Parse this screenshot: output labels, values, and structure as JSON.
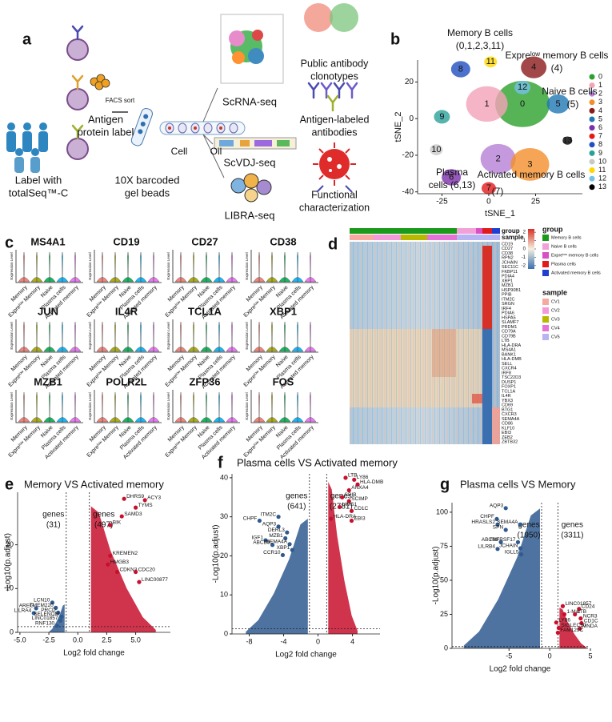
{
  "figure_a": {
    "panel": "a",
    "captions": [
      [
        "Label with",
        "totalSeq™-C"
      ],
      [
        "Antigen",
        "protein label"
      ],
      [
        "FACS sort"
      ],
      [
        "10X barcoded",
        "gel beads"
      ],
      [
        "Cell"
      ],
      [
        "Oil"
      ],
      [
        "ScRNA-seq"
      ],
      [
        "ScVDJ-seq"
      ],
      [
        "LIBRA-seq"
      ],
      [
        "Public antibody",
        "clonotypes"
      ],
      [
        "Antigen-labeled",
        "antibodies"
      ],
      [
        "Functional",
        "characterization"
      ]
    ]
  },
  "chart_data": [
    {
      "type": "scatter",
      "panel": "b",
      "xlabel": "tSNE_1",
      "ylabel": "tSNE_2",
      "xlim": [
        -38,
        50
      ],
      "ylim": [
        -41,
        32
      ],
      "xticks": [
        -25,
        0,
        25
      ],
      "yticks": [
        -40,
        -20,
        0,
        20
      ],
      "clusters": [
        {
          "label": "0",
          "color": "#2ca02c",
          "x": 18,
          "y": 8
        },
        {
          "label": "1",
          "color": "#f4a3b8",
          "x": -1,
          "y": 8
        },
        {
          "label": "2",
          "color": "#b57fd6",
          "x": 5,
          "y": -22
        },
        {
          "label": "3",
          "color": "#f28e2b",
          "x": 22,
          "y": -25
        },
        {
          "label": "4",
          "color": "#8b1a1a",
          "x": 24,
          "y": 28
        },
        {
          "label": "5",
          "color": "#1f77b4",
          "x": 37,
          "y": 8
        },
        {
          "label": "6",
          "color": "#7b2fa8",
          "x": -20,
          "y": -32
        },
        {
          "label": "7",
          "color": "#e31a1c",
          "x": 0,
          "y": -38
        },
        {
          "label": "8",
          "color": "#1f4fc0",
          "x": -15,
          "y": 27
        },
        {
          "label": "9",
          "color": "#2aa198",
          "x": -25,
          "y": 1
        },
        {
          "label": "10",
          "color": "#c8c8c8",
          "x": -28,
          "y": -17
        },
        {
          "label": "11",
          "color": "#ffd700",
          "x": 1,
          "y": 31
        },
        {
          "label": "12",
          "color": "#74c0e8",
          "x": 18,
          "y": 17
        },
        {
          "label": "13",
          "color": "#000000",
          "x": 42,
          "y": -12
        }
      ],
      "annotations": [
        [
          "Memory B cells",
          "(0,1,2,3,11)"
        ],
        [
          "Expreˡᵒʷ memory B cells",
          "(4)"
        ],
        [
          "Naive B cells",
          "(5)"
        ],
        [
          "Plasma",
          "cells (6,13)"
        ],
        [
          "Activated memory B cells",
          "(7)"
        ]
      ]
    },
    {
      "type": "violin",
      "panel": "c",
      "ylabel": "Expression Level",
      "categories": [
        "Memory",
        "Expreˡᵒʷ Memory",
        "Naive",
        "Plasma cells",
        "Activated memory"
      ],
      "colors": [
        "#f0776d",
        "#a3a500",
        "#00b050",
        "#00b0f6",
        "#e76bf3"
      ],
      "genes": [
        "MS4A1",
        "CD19",
        "CD27",
        "CD38",
        "JUN",
        "IL4R",
        "TCL1A",
        "XBP1",
        "MZB1",
        "POLR2L",
        "ZFP36",
        "FOS"
      ]
    },
    {
      "type": "heatmap",
      "panel": "d",
      "bar_labels": [
        "group",
        "sample"
      ],
      "rows": [
        "CD19",
        "CD27",
        "CD38",
        "RPN2",
        "JCHAIN",
        "SEC11C",
        "FKBP11",
        "PDIA4",
        "XBP1",
        "MZB1",
        "HSP90B1",
        "PPIB",
        "ITM2C",
        "SRGN",
        "IRF4",
        "PDIA6",
        "HSPA5",
        "SLAMF7",
        "PRDM1",
        "CD79A",
        "CD79B",
        "LTB",
        "HLA-DRA",
        "MS4A1",
        "BANK1",
        "HLA-DMB",
        "SELL",
        "CXCR4",
        "IRF8",
        "TSC22D3",
        "DUSP1",
        "FOXP1",
        "TCL1A",
        "IL4R",
        "YBX3",
        "CD69",
        "BTG1",
        "CXCR3",
        "SEMA4A",
        "CD86",
        "KLF10",
        "EBI3",
        "ZEB2",
        "ZBTB32"
      ],
      "clim": [
        -2.4,
        2.4
      ],
      "cticks": [
        2,
        1,
        0,
        -1,
        -2
      ],
      "ccolors": [
        "#3a6fb0",
        "#f5f0e0",
        "#d73027"
      ],
      "group_title": "group",
      "groups": [
        {
          "name": "Memory B cells",
          "color": "#1a9a1a"
        },
        {
          "name": "Naive B cells",
          "color": "#f2a0d8"
        },
        {
          "name": "Expreˡᵒʷ memory B cells",
          "color": "#d94fc4"
        },
        {
          "name": "Plasma cells",
          "color": "#e31a1c"
        },
        {
          "name": "Activated memory B cells",
          "color": "#1f3fd0"
        }
      ],
      "sample_title": "sample",
      "samples": [
        {
          "name": "CV1",
          "color": "#f7a8a0"
        },
        {
          "name": "CV2",
          "color": "#f59ad9"
        },
        {
          "name": "CV3",
          "color": "#b8b800"
        },
        {
          "name": "CV4",
          "color": "#e572d6"
        },
        {
          "name": "CV5",
          "color": "#b6b4f2"
        }
      ]
    },
    {
      "type": "volcano",
      "panel": "e",
      "title": "Memory VS Activated memory",
      "xlabel": "Log2 fold change",
      "ylabel": "-Log10(p.adjust)",
      "xlim": [
        -5.2,
        8
      ],
      "ylim": [
        0,
        32
      ],
      "xticks": [
        {
          "value": -5,
          "label": "-5.0"
        },
        -2.5,
        {
          "value": 0,
          "label": "0.0"
        },
        2.5,
        {
          "value": 5,
          "label": "5.0"
        }
      ],
      "yticks": [
        0,
        10,
        20
      ],
      "thresholds": [
        -1,
        1
      ],
      "p_threshold": 1.3,
      "down": {
        "color": "#2f5b8f",
        "label": [
          "genes",
          "(31)"
        ],
        "genes": [
          {
            "name": "AREG",
            "x": -3.6,
            "y": 5.5
          },
          {
            "name": "LILRA4",
            "x": -3.8,
            "y": 4.4
          },
          {
            "name": "LCN10",
            "x": -2.2,
            "y": 6.8
          },
          {
            "name": "TMEM220",
            "x": -1.9,
            "y": 5.6
          },
          {
            "name": "PRCD",
            "x": -1.7,
            "y": 4.5
          },
          {
            "name": "SELENOM",
            "x": -1.4,
            "y": 3.6
          },
          {
            "name": "LINC01857",
            "x": -1.5,
            "y": 2.7
          },
          {
            "name": "RNF130",
            "x": -1.8,
            "y": 1.5
          }
        ]
      },
      "up": {
        "color": "#c8102e",
        "label": [
          "genes",
          "(497)"
        ],
        "genes": [
          {
            "name": "DHRS9",
            "x": 4.0,
            "y": 30.5
          },
          {
            "name": "ACY3",
            "x": 5.8,
            "y": 30.2
          },
          {
            "name": "TYMS",
            "x": 5.0,
            "y": 28.5
          },
          {
            "name": "SAMD3",
            "x": 3.8,
            "y": 26.5
          },
          {
            "name": "BIK",
            "x": 2.8,
            "y": 24.5
          },
          {
            "name": "KREMEN2",
            "x": 2.8,
            "y": 17.5
          },
          {
            "name": "HMGB3",
            "x": 2.6,
            "y": 15.5
          },
          {
            "name": "CDKN3",
            "x": 3.4,
            "y": 13.8
          },
          {
            "name": "CDC20",
            "x": 5.0,
            "y": 13.8
          },
          {
            "name": "LINC00877",
            "x": 5.3,
            "y": 11.5
          }
        ]
      }
    },
    {
      "type": "volcano",
      "panel": "f",
      "title": "Plasma cells VS Activated memory",
      "xlabel": "Log2 fold change",
      "ylabel": "-Log10(p.adjust)",
      "xlim": [
        -10,
        7.2
      ],
      "ylim": [
        0,
        41
      ],
      "xticks": [
        -8,
        -4,
        0,
        4
      ],
      "yticks": [
        0,
        10,
        20,
        30,
        40
      ],
      "thresholds": [
        -1,
        1
      ],
      "p_threshold": 1.3,
      "down": {
        "color": "#2f5b8f",
        "label": [
          "genes",
          "(641)"
        ],
        "genes": [
          {
            "name": "CHPF",
            "x": -6.8,
            "y": 29
          },
          {
            "name": "ITM2C",
            "x": -4.6,
            "y": 30
          },
          {
            "name": "AQP3",
            "x": -4.6,
            "y": 27.5
          },
          {
            "name": "DERL3",
            "x": -3.6,
            "y": 26
          },
          {
            "name": "MZB1",
            "x": -3.8,
            "y": 24.5
          },
          {
            "name": "IGF1",
            "x": -6.1,
            "y": 24
          },
          {
            "name": "ABCB9",
            "x": -5.3,
            "y": 22.8
          },
          {
            "name": "SEMA4A",
            "x": -3.3,
            "y": 23
          },
          {
            "name": "XBP1",
            "x": -3.0,
            "y": 21.5
          },
          {
            "name": "CCR10",
            "x": -4.1,
            "y": 20.2
          }
        ]
      },
      "up": {
        "color": "#c8102e",
        "label": [
          "genes",
          "(2781)"
        ],
        "genes": [
          {
            "name": "LTB",
            "x": 3.2,
            "y": 40
          },
          {
            "name": "LY86",
            "x": 4.2,
            "y": 39.5
          },
          {
            "name": "HLA-DMB",
            "x": 4.6,
            "y": 38.3
          },
          {
            "name": "ANXA4",
            "x": 3.6,
            "y": 36.8
          },
          {
            "name": "SPIB",
            "x": 2.8,
            "y": 35
          },
          {
            "name": "SCIMP",
            "x": 3.6,
            "y": 34
          },
          {
            "name": "LIMS1",
            "x": 2.5,
            "y": 32.5
          },
          {
            "name": "CD1C",
            "x": 3.9,
            "y": 31.5
          },
          {
            "name": "HLA-DRA",
            "x": 1.5,
            "y": 29.5
          },
          {
            "name": "EBI3",
            "x": 3.9,
            "y": 29
          }
        ]
      }
    },
    {
      "type": "volcano",
      "panel": "g",
      "title": "Plasma cells VS Memory",
      "xlabel": "Log2 fold change",
      "ylabel": "-Log10(p.adjust)",
      "xlim": [
        -12,
        4.7
      ],
      "ylim": [
        0,
        107
      ],
      "xticks": [
        -5,
        0,
        5
      ],
      "yticks": [
        0,
        25,
        50,
        75,
        100
      ],
      "thresholds": [
        -1,
        1
      ],
      "p_threshold": 1.3,
      "down": {
        "color": "#2f5b8f",
        "label": [
          "genes",
          "(1950)"
        ],
        "genes": [
          {
            "name": "AQP3",
            "x": -5.4,
            "y": 103
          },
          {
            "name": "CHPF",
            "x": -6.5,
            "y": 95
          },
          {
            "name": "HRASLS2",
            "x": -6.4,
            "y": 91
          },
          {
            "name": "SPN",
            "x": -5.4,
            "y": 87
          },
          {
            "name": "SEMA4A",
            "x": -3.6,
            "y": 91
          },
          {
            "name": "ABCB9",
            "x": -6.0,
            "y": 78
          },
          {
            "name": "LILRB4",
            "x": -6.4,
            "y": 73
          },
          {
            "name": "TNFRSF17",
            "x": -3.9,
            "y": 78
          },
          {
            "name": "JCHAIN",
            "x": -3.6,
            "y": 73.5
          },
          {
            "name": "IGLL5",
            "x": -3.5,
            "y": 69
          }
        ]
      },
      "up": {
        "color": "#c8102e",
        "label": [
          "genes",
          "(3311)"
        ],
        "genes": [
          {
            "name": "LINC01857",
            "x": 1.6,
            "y": 31
          },
          {
            "name": "CD24",
            "x": 3.6,
            "y": 29
          },
          {
            "name": "1-Mar",
            "x": 1.8,
            "y": 25
          },
          {
            "name": "LTB",
            "x": 3.1,
            "y": 25
          },
          {
            "name": "NCR3",
            "x": 3.8,
            "y": 22
          },
          {
            "name": "CD1C",
            "x": 3.9,
            "y": 18.5
          },
          {
            "name": "MNDA",
            "x": 3.7,
            "y": 14.5
          },
          {
            "name": "LY86",
            "x": 0.8,
            "y": 19
          },
          {
            "name": "SIGLEC10",
            "x": 1.1,
            "y": 15
          },
          {
            "name": "FAM129C",
            "x": 1.0,
            "y": 11.5
          }
        ]
      }
    }
  ]
}
